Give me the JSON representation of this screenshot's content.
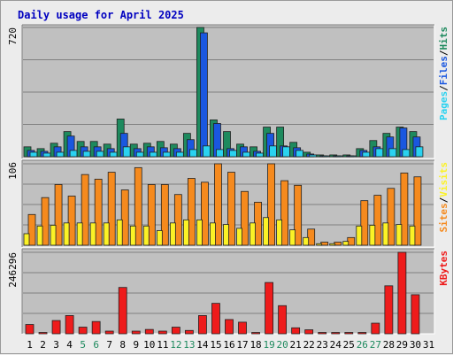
{
  "chart_data": {
    "type": "bar",
    "title": "Daily usage for April 2025",
    "categories": [
      "1",
      "2",
      "3",
      "4",
      "5",
      "6",
      "7",
      "8",
      "9",
      "10",
      "11",
      "12",
      "13",
      "14",
      "15",
      "16",
      "17",
      "18",
      "19",
      "20",
      "21",
      "22",
      "23",
      "24",
      "25",
      "26",
      "27",
      "28",
      "29",
      "30",
      "31"
    ],
    "weekend_days": [
      "5",
      "6",
      "12",
      "13",
      "19",
      "20",
      "26",
      "27"
    ],
    "panels": [
      {
        "id": "hits-files-pages",
        "scale_max": 720,
        "scale_label": "720",
        "axis_label_parts": [
          "Pages",
          "/",
          "Files",
          "/",
          "Hits"
        ],
        "series": [
          {
            "name": "Hits",
            "values": [
              55,
              45,
              75,
              140,
              85,
              85,
              70,
              210,
              70,
              75,
              85,
              70,
              130,
              720,
              205,
              140,
              70,
              55,
              165,
              165,
              80,
              25,
              10,
              10,
              10,
              45,
              90,
              130,
              165,
              140,
              0
            ]
          },
          {
            "name": "Files",
            "values": [
              35,
              30,
              55,
              115,
              55,
              55,
              45,
              130,
              45,
              55,
              50,
              45,
              95,
              690,
              185,
              45,
              55,
              30,
              130,
              60,
              50,
              15,
              5,
              5,
              5,
              35,
              55,
              110,
              160,
              110,
              0
            ]
          },
          {
            "name": "Pages",
            "values": [
              25,
              20,
              25,
              35,
              30,
              30,
              25,
              55,
              25,
              25,
              25,
              25,
              40,
              60,
              40,
              35,
              25,
              20,
              60,
              55,
              35,
              10,
              3,
              3,
              3,
              25,
              45,
              45,
              40,
              55,
              0
            ]
          }
        ]
      },
      {
        "id": "visits-sites",
        "scale_max": 106,
        "scale_label": "106",
        "axis_label_parts": [
          "Sites",
          "/",
          "Visits"
        ],
        "series": [
          {
            "name": "Visits",
            "values": [
              40,
              62,
              79,
              64,
              92,
              86,
              95,
              72,
              101,
              79,
              79,
              66,
              87,
              82,
              106,
              95,
              70,
              56,
              106,
              84,
              78,
              21,
              4,
              4,
              10,
              58,
              65,
              74,
              94,
              89,
              0
            ]
          },
          {
            "name": "Sites",
            "values": [
              15,
              25,
              26,
              29,
              29,
              29,
              29,
              33,
              25,
              25,
              19,
              29,
              33,
              33,
              29,
              27,
              22,
              29,
              36,
              33,
              20,
              10,
              2,
              2,
              5,
              25,
              26,
              29,
              27,
              25,
              0
            ]
          }
        ]
      },
      {
        "id": "kbytes",
        "scale_max": 246296,
        "scale_label": "246296",
        "axis_label_parts": [
          "KBytes"
        ],
        "series": [
          {
            "name": "KBytes",
            "values": [
              28000,
              4000,
              40000,
              55000,
              20000,
              37000,
              8000,
              140000,
              8000,
              13000,
              8000,
              20000,
              10000,
              55000,
              92000,
              43000,
              35000,
              4000,
              155000,
              85000,
              18000,
              12000,
              4000,
              4000,
              4000,
              4000,
              32000,
              145000,
              246296,
              118000,
              0
            ]
          }
        ]
      }
    ]
  },
  "colors": {
    "hits": "#1e8a5e",
    "files": "#1a57e0",
    "pages": "#2ad2f0",
    "visits": "#f58a1e",
    "sites": "#fbf226",
    "kbytes": "#ee1b1b",
    "title": "#0000c0",
    "weekday_label": "#000000",
    "weekend_label": "#1e8a5e",
    "plot_bg": "#c0c0c0",
    "frame_bg": "#ececec",
    "grid": "#7f7f7f"
  }
}
